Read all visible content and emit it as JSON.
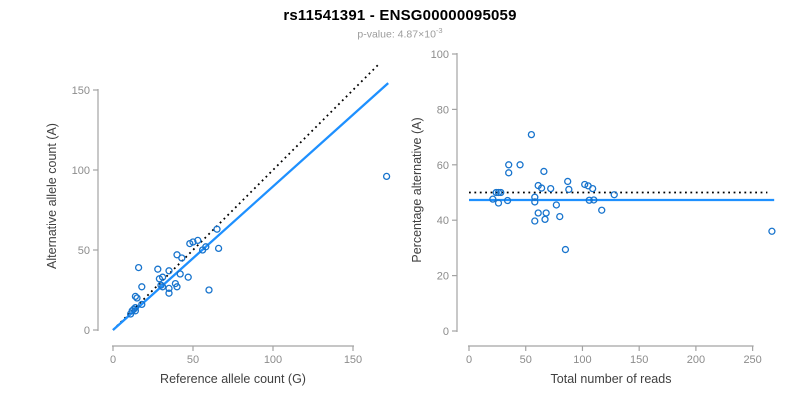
{
  "header": {
    "title": "rs11541391 - ENSG00000095059",
    "pvalue_prefix": "p-value: ",
    "pvalue_mantissa": "4.87",
    "pvalue_times": "×10",
    "pvalue_exponent": "-3"
  },
  "colors": {
    "point_stroke": "#1874CD",
    "fit_line": "#1E90FF",
    "dotted_line": "#000000",
    "axis": "#a3a3a3",
    "tick_label": "#8c8c8c",
    "axis_title": "#404040",
    "title": "#000000",
    "subtitle": "#9c9c9c"
  },
  "chart_data": [
    {
      "type": "scatter",
      "panel": "left",
      "xlabel": "Reference allele count (G)",
      "ylabel": "Alternative allele count (A)",
      "xticks": [
        0,
        50,
        100,
        150
      ],
      "yticks": [
        0,
        50,
        100,
        150
      ],
      "xlim": [
        0,
        175
      ],
      "ylim": [
        0,
        170
      ],
      "grid": false,
      "legend": "none",
      "points": [
        [
          11,
          10
        ],
        [
          12,
          12
        ],
        [
          13,
          13
        ],
        [
          14,
          12
        ],
        [
          14,
          14
        ],
        [
          18,
          16
        ],
        [
          14,
          21
        ],
        [
          15,
          20
        ],
        [
          18,
          27
        ],
        [
          16,
          39
        ],
        [
          30,
          28
        ],
        [
          31,
          27
        ],
        [
          35,
          23
        ],
        [
          29,
          32
        ],
        [
          35,
          26
        ],
        [
          31,
          33
        ],
        [
          28,
          38
        ],
        [
          40,
          27
        ],
        [
          39,
          29
        ],
        [
          35,
          37
        ],
        [
          42,
          35
        ],
        [
          47,
          33
        ],
        [
          60,
          25
        ],
        [
          40,
          47
        ],
        [
          43,
          45
        ],
        [
          48,
          54
        ],
        [
          50,
          55
        ],
        [
          56,
          50
        ],
        [
          53,
          56
        ],
        [
          58,
          52
        ],
        [
          66,
          51
        ],
        [
          65,
          63
        ],
        [
          171,
          96
        ]
      ],
      "lines": [
        {
          "name": "identity-diagonal",
          "style": "dotted",
          "color": "#000000",
          "from": [
            0,
            0
          ],
          "to": [
            167,
            167
          ]
        },
        {
          "name": "regression-fit",
          "style": "solid",
          "color": "#1E90FF",
          "from": [
            0,
            0
          ],
          "to": [
            172,
            154.3
          ]
        }
      ]
    },
    {
      "type": "scatter",
      "panel": "right",
      "xlabel": "Total number of reads",
      "ylabel": "Percentage alternative (A)",
      "xticks": [
        0,
        50,
        100,
        150,
        200,
        250
      ],
      "yticks": [
        0,
        20,
        40,
        60,
        80,
        100
      ],
      "xlim": [
        0,
        280
      ],
      "ylim": [
        0,
        100
      ],
      "grid": false,
      "legend": "none",
      "points": [
        [
          21,
          47.6
        ],
        [
          24,
          50.0
        ],
        [
          26,
          50.0
        ],
        [
          26,
          46.2
        ],
        [
          28,
          50.0
        ],
        [
          34,
          47.1
        ],
        [
          35,
          60.0
        ],
        [
          35,
          57.1
        ],
        [
          45,
          60.0
        ],
        [
          55,
          70.9
        ],
        [
          58,
          48.3
        ],
        [
          58,
          46.6
        ],
        [
          58,
          39.7
        ],
        [
          61,
          52.5
        ],
        [
          61,
          42.6
        ],
        [
          64,
          51.6
        ],
        [
          66,
          57.6
        ],
        [
          67,
          40.3
        ],
        [
          68,
          42.6
        ],
        [
          72,
          51.4
        ],
        [
          77,
          45.5
        ],
        [
          80,
          41.3
        ],
        [
          85,
          29.4
        ],
        [
          87,
          54.0
        ],
        [
          88,
          51.1
        ],
        [
          102,
          52.9
        ],
        [
          105,
          52.4
        ],
        [
          106,
          47.2
        ],
        [
          109,
          51.4
        ],
        [
          110,
          47.3
        ],
        [
          117,
          43.6
        ],
        [
          128,
          49.2
        ],
        [
          267,
          36.0
        ]
      ],
      "lines": [
        {
          "name": "expected-50-percent",
          "style": "dotted",
          "color": "#000000",
          "from": [
            0,
            50
          ],
          "to": [
            263,
            50
          ]
        },
        {
          "name": "fitted-mean-percent",
          "style": "solid",
          "color": "#1E90FF",
          "from": [
            0,
            47.3
          ],
          "to": [
            269,
            47.3
          ]
        }
      ]
    }
  ]
}
